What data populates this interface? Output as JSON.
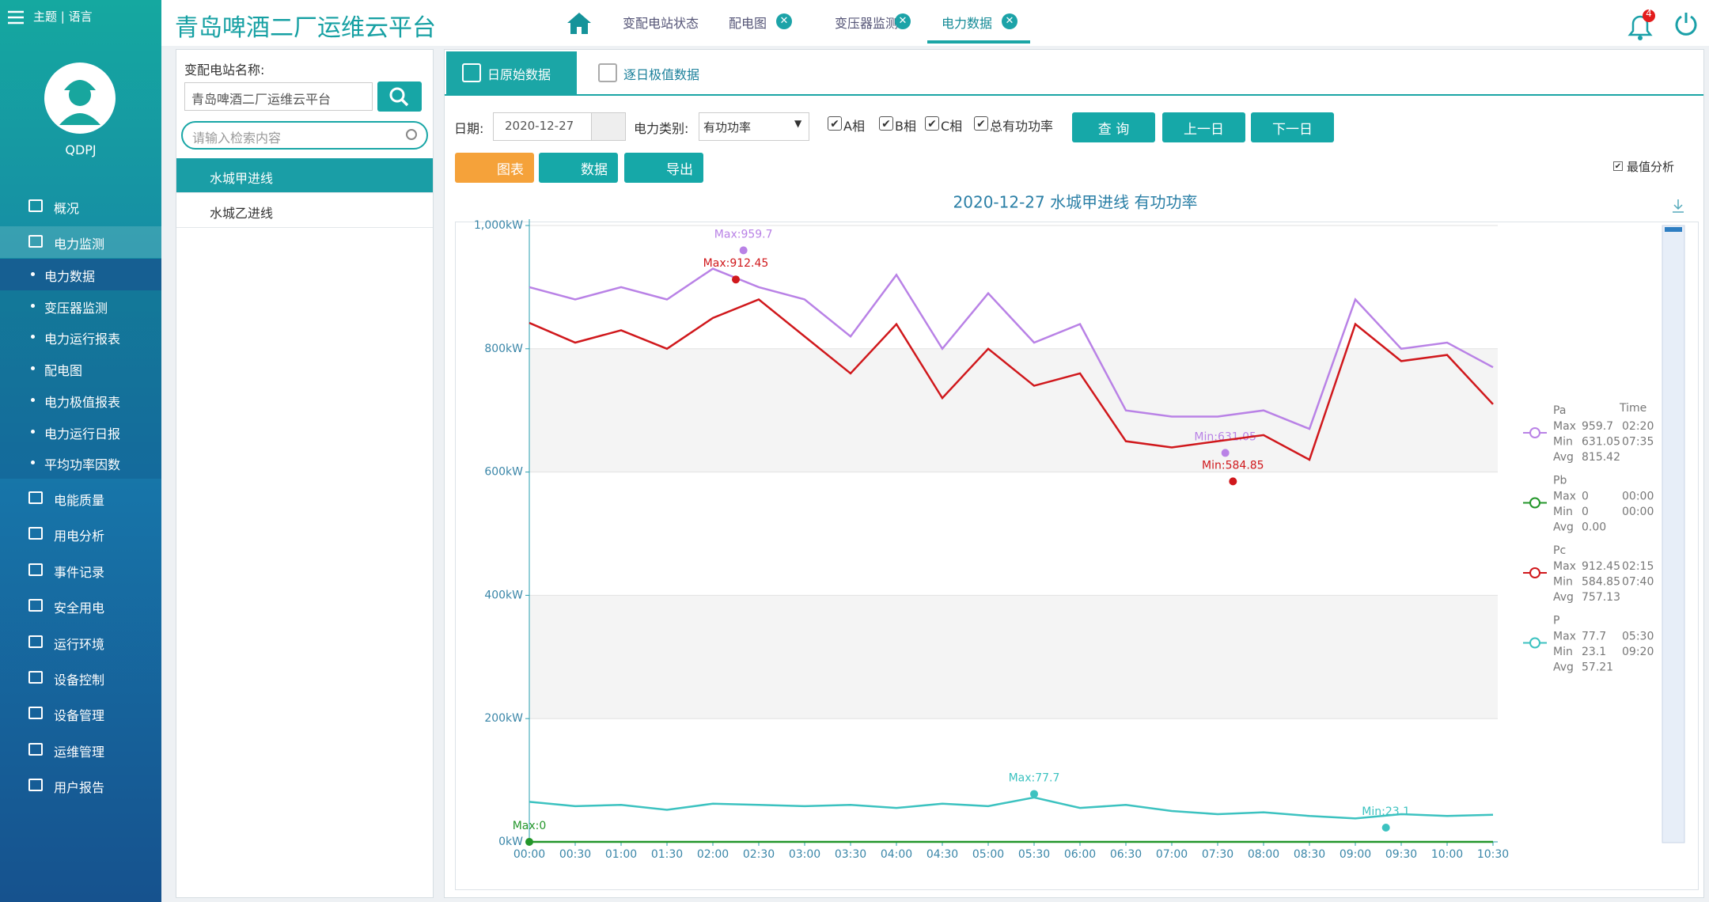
{
  "header": {
    "menu_label": "主题 | 语言",
    "title": "青岛啤酒二厂运维云平台",
    "nav": [
      "变配电站状态",
      "配电图",
      "变压器监测",
      "电力数据"
    ],
    "alert_count": 4
  },
  "sidebar": {
    "user": "QDPJ",
    "menu_top": [
      "概况",
      "电力监测"
    ],
    "submenu": [
      "电力数据",
      "变压器监测",
      "电力运行报表",
      "配电图",
      "电力极值报表",
      "电力运行日报",
      "平均功率因数"
    ],
    "menu_rest": [
      "电能质量",
      "用电分析",
      "事件记录",
      "安全用电",
      "运行环境",
      "设备控制",
      "设备管理",
      "运维管理",
      "用户报告"
    ]
  },
  "station_panel": {
    "label": "变配电站名称:",
    "input": "青岛啤酒二厂运维云平台",
    "search_placeholder": "请输入检索内容",
    "items": [
      "水城甲进线",
      "水城乙进线"
    ]
  },
  "tabs": [
    "日原始数据",
    "逐日极值数据"
  ],
  "toolbar": {
    "date_label": "日期:",
    "date": "2020-12-27",
    "type_label": "电力类别:",
    "type": "有功功率",
    "checks": [
      "A相",
      "B相",
      "C相",
      "总有功功率"
    ],
    "buttons": [
      "查 询",
      "上一日",
      "下一日"
    ],
    "views": [
      "图表",
      "数据",
      "导出"
    ],
    "analysis": "最值分析"
  },
  "chart_data": {
    "type": "line",
    "title": "2020-12-27  水城甲进线  有功功率",
    "categories": [
      "00:00",
      "00:30",
      "01:00",
      "01:30",
      "02:00",
      "02:30",
      "03:00",
      "03:30",
      "04:00",
      "04:30",
      "05:00",
      "05:30",
      "06:00",
      "06:30",
      "07:00",
      "07:30",
      "08:00",
      "08:30",
      "09:00",
      "09:30",
      "10:00",
      "10:30"
    ],
    "ylim": [
      0,
      1000
    ],
    "yticks": [
      {
        "value": 0,
        "label": "0kW"
      },
      {
        "value": 200,
        "label": "200kW"
      },
      {
        "value": 400,
        "label": "400kW"
      },
      {
        "value": 600,
        "label": "600kW"
      },
      {
        "value": 800,
        "label": "800kW"
      },
      {
        "value": 1000,
        "label": "1,000kW"
      }
    ],
    "grid": true,
    "legend_labels": {
      "time": "Time",
      "max": "Max",
      "min": "Min",
      "avg": "Avg"
    },
    "series": [
      {
        "name": "Pa",
        "color": "#b982e6",
        "values": [
          900,
          880,
          900,
          880,
          930,
          900,
          880,
          820,
          920,
          800,
          890,
          810,
          840,
          700,
          690,
          690,
          700,
          670,
          880,
          800,
          810,
          770
        ],
        "stats": {
          "max": 959.7,
          "max_time": "02:20",
          "min": 631.05,
          "min_time": "07:35",
          "avg": 815.42
        },
        "mark_labels": {
          "max": "Max:959.7",
          "min": "Min:631.05"
        }
      },
      {
        "name": "Pb",
        "color": "#23962a",
        "values": [
          0,
          0,
          0,
          0,
          0,
          0,
          0,
          0,
          0,
          0,
          0,
          0,
          0,
          0,
          0,
          0,
          0,
          0,
          0,
          0,
          0,
          0
        ],
        "stats": {
          "max": 0,
          "max_time": "00:00",
          "min": 0,
          "min_time": "00:00",
          "avg": {
            "value": 0,
            "label": "0.00"
          }
        },
        "mark_labels": {
          "max": "Max:0"
        }
      },
      {
        "name": "Pc",
        "color": "#d0181c",
        "values": [
          842,
          810,
          830,
          800,
          850,
          880,
          820,
          760,
          840,
          720,
          800,
          740,
          760,
          650,
          640,
          650,
          660,
          620,
          840,
          780,
          790,
          710
        ],
        "stats": {
          "max": 912.45,
          "max_time": "02:15",
          "min": 584.85,
          "min_time": "07:40",
          "avg": 757.13
        },
        "mark_labels": {
          "max": "Max:912.45",
          "min": "Min:584.85"
        }
      },
      {
        "name": "P",
        "color": "#3cc2c0",
        "values": [
          65,
          58,
          60,
          52,
          62,
          60,
          58,
          60,
          55,
          62,
          58,
          72,
          55,
          60,
          50,
          45,
          48,
          42,
          38,
          45,
          42,
          44
        ],
        "stats": {
          "max": 77.7,
          "max_time": "05:30",
          "min": 23.1,
          "min_time": "09:20",
          "avg": 57.21
        },
        "mark_labels": {
          "max": "Max:77.7",
          "min": "Min:23.1"
        }
      }
    ]
  }
}
